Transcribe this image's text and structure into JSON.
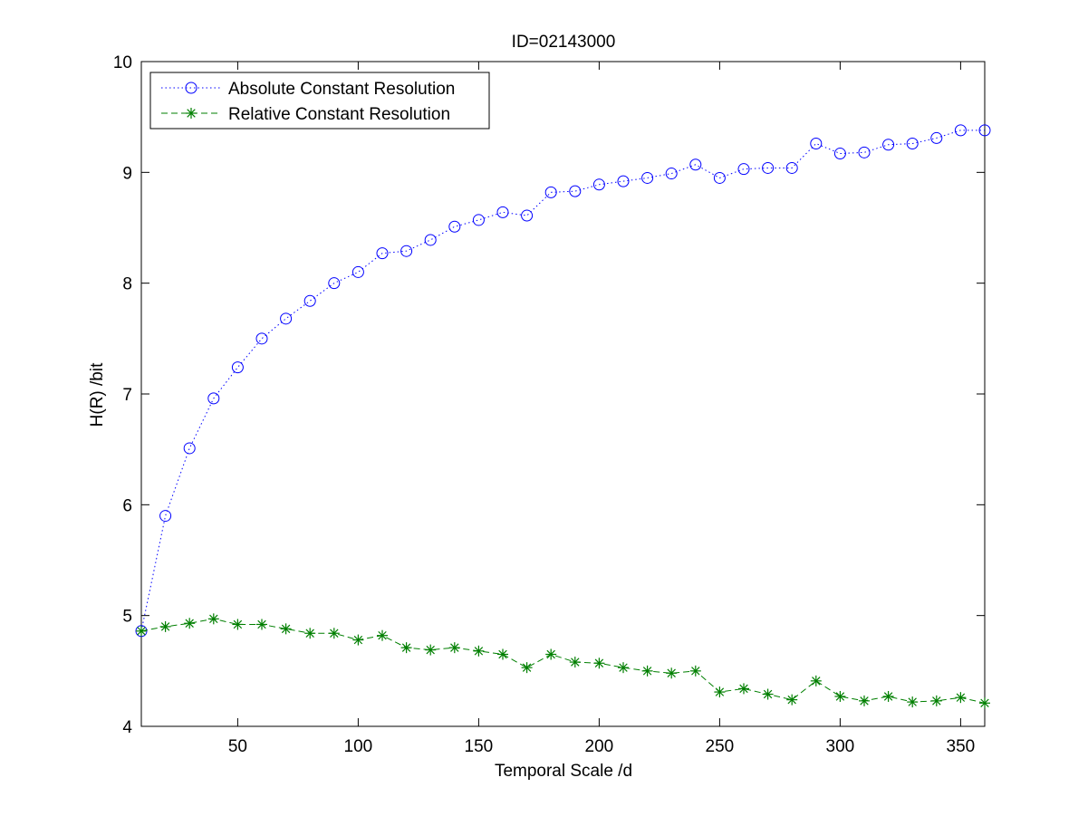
{
  "chart_data": {
    "type": "line",
    "title": "ID=02143000",
    "xlabel": "Temporal Scale /d",
    "ylabel": "H(R) /bit",
    "xlim": [
      10,
      360
    ],
    "ylim": [
      4,
      10
    ],
    "xticks": [
      50,
      100,
      150,
      200,
      250,
      300,
      350
    ],
    "yticks": [
      4,
      5,
      6,
      7,
      8,
      9,
      10
    ],
    "grid": false,
    "legend_position": "top-left",
    "x": [
      10,
      20,
      30,
      40,
      50,
      60,
      70,
      80,
      90,
      100,
      110,
      120,
      130,
      140,
      150,
      160,
      170,
      180,
      190,
      200,
      210,
      220,
      230,
      240,
      250,
      260,
      270,
      280,
      290,
      300,
      310,
      320,
      330,
      340,
      350,
      360
    ],
    "series": [
      {
        "name": "Absolute Constant Resolution",
        "color": "#0000ff",
        "line_style": "dotted",
        "marker": "circle",
        "values": [
          4.86,
          5.9,
          6.51,
          6.96,
          7.24,
          7.5,
          7.68,
          7.84,
          8.0,
          8.1,
          8.27,
          8.29,
          8.39,
          8.51,
          8.57,
          8.64,
          8.61,
          8.82,
          8.83,
          8.89,
          8.92,
          8.95,
          8.99,
          9.07,
          8.95,
          9.03,
          9.04,
          9.04,
          9.26,
          9.17,
          9.18,
          9.25,
          9.26,
          9.31,
          9.38,
          9.38
        ]
      },
      {
        "name": "Relative Constant Resolution",
        "color": "#007f00",
        "line_style": "dashed",
        "marker": "asterisk",
        "values": [
          4.86,
          4.9,
          4.93,
          4.97,
          4.92,
          4.92,
          4.88,
          4.84,
          4.84,
          4.78,
          4.82,
          4.71,
          4.69,
          4.71,
          4.68,
          4.65,
          4.53,
          4.65,
          4.58,
          4.57,
          4.53,
          4.5,
          4.48,
          4.5,
          4.31,
          4.34,
          4.29,
          4.24,
          4.41,
          4.27,
          4.23,
          4.27,
          4.22,
          4.23,
          4.26,
          4.21
        ]
      }
    ]
  }
}
